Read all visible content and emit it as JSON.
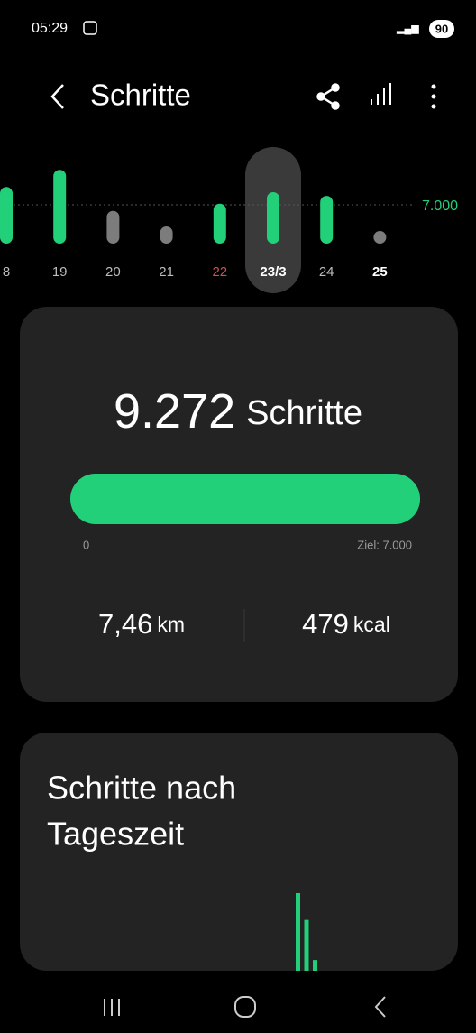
{
  "status_bar": {
    "time": "05:29",
    "battery": "90"
  },
  "header": {
    "title": "Schritte"
  },
  "week_chart": {
    "type": "bar",
    "categories": [
      "8",
      "19",
      "20",
      "21",
      "22",
      "23/3",
      "24",
      "25"
    ],
    "values": [
      10200,
      13300,
      5900,
      3100,
      7200,
      9272,
      8600,
      2000
    ],
    "goal": {
      "value": 7000,
      "label": "7.000"
    },
    "selected": 5,
    "color_reached": "#22d07a",
    "color_missed": "#7c7c7c",
    "label_colors": [
      "#bdbdbd",
      "#bdbdbd",
      "#bdbdbd",
      "#bdbdbd",
      "#c9515c",
      "#ffffff",
      "#bdbdbd",
      "#ffffff"
    ]
  },
  "summary": {
    "steps": "9.272",
    "steps_unit": "Schritte",
    "progress_start": "0",
    "goal_text": "Ziel: 7.000",
    "distance": "7,46",
    "distance_unit": "km",
    "energy": "479",
    "energy_unit": "kcal"
  },
  "daytime_card": {
    "title_line1": "Schritte nach",
    "title_line2": "Tageszeit",
    "values": [
      2900,
      1900,
      400
    ],
    "color": "#22d07a"
  }
}
